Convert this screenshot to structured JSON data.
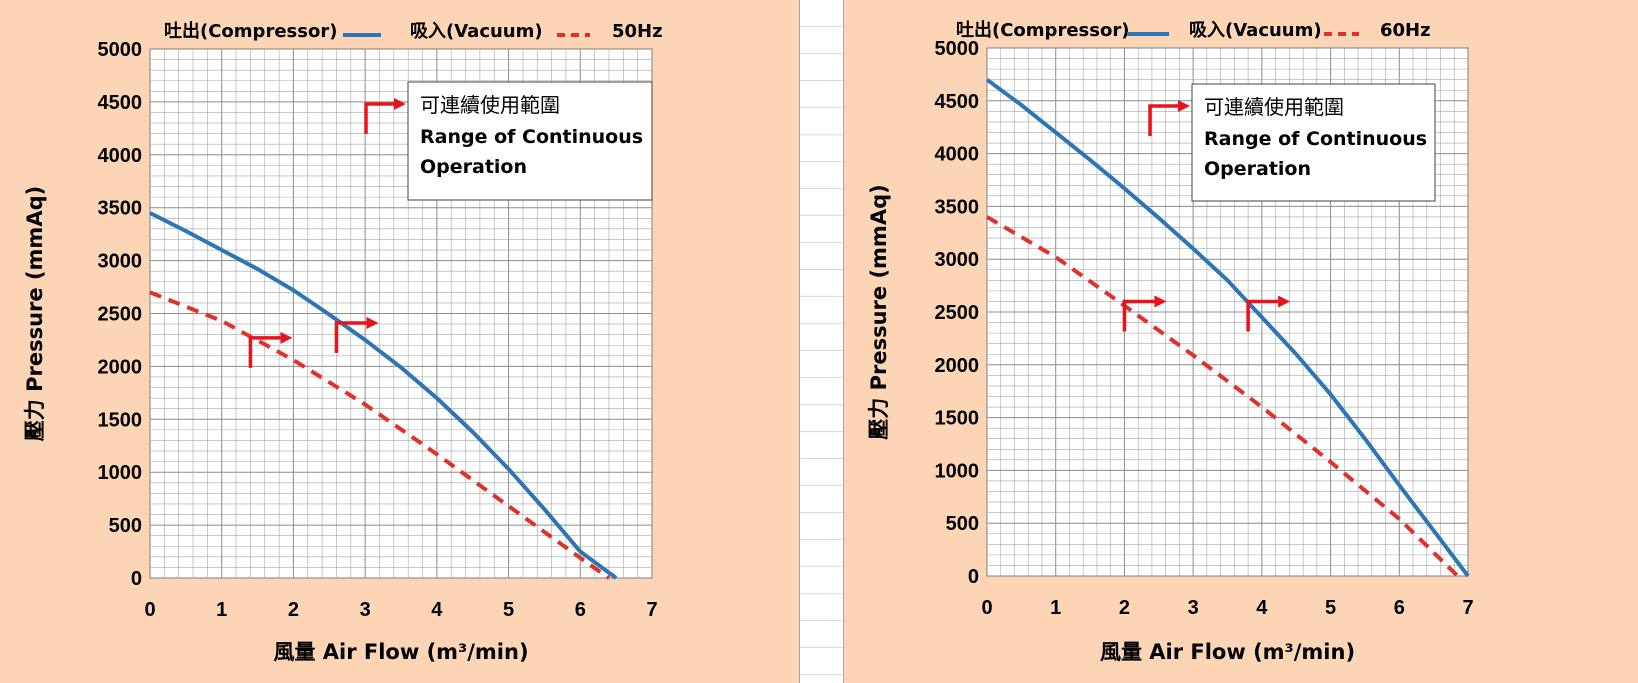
{
  "legend": {
    "compressor_label": "吐出(Compressor)",
    "vacuum_label": "吸入(Vacuum)"
  },
  "colors": {
    "compressor": "#2e75b6",
    "vacuum": "#e0312b",
    "marker": "#e8141b",
    "panel_background": "#fbd5b5"
  },
  "annotation": {
    "line1": "可連續使用範圍",
    "line2": "Range of Continuous",
    "line3": "Operation"
  },
  "chart_data": [
    {
      "type": "line",
      "frequency_label": "50Hz",
      "xlabel": "風量 Air Flow (m³/min)",
      "ylabel": "壓力 Pressure (mmAq)",
      "xlim": [
        0,
        7
      ],
      "ylim": [
        0,
        5000
      ],
      "x_ticks": [
        "0",
        "1",
        "2",
        "3",
        "4",
        "5",
        "6",
        "7"
      ],
      "y_ticks": [
        "0",
        "500",
        "1000",
        "1500",
        "2000",
        "2500",
        "3000",
        "3500",
        "4000",
        "4500",
        "5000"
      ],
      "grid": true,
      "legend_position": "top",
      "series": [
        {
          "name": "吐出(Compressor)",
          "style": "solid",
          "x": [
            0,
            0.5,
            1,
            1.5,
            2,
            2.5,
            3,
            3.5,
            4,
            4.5,
            5,
            5.5,
            6,
            6.5
          ],
          "y": [
            3450,
            3280,
            3100,
            2920,
            2720,
            2490,
            2250,
            1990,
            1700,
            1380,
            1030,
            650,
            250,
            0
          ]
        },
        {
          "name": "吸入(Vacuum)",
          "style": "dashed",
          "x": [
            0,
            1,
            2,
            3,
            4,
            5,
            6,
            6.4
          ],
          "y": [
            2700,
            2430,
            2060,
            1640,
            1170,
            680,
            190,
            0
          ]
        }
      ],
      "continuous_operation_markers": [
        {
          "x": 1.4,
          "y": 2270
        },
        {
          "x": 2.6,
          "y": 2410
        }
      ]
    },
    {
      "type": "line",
      "frequency_label": "60Hz",
      "xlabel": "風量 Air Flow (m³/min)",
      "ylabel": "壓力 Pressure (mmAq)",
      "xlim": [
        0,
        7
      ],
      "ylim": [
        0,
        5000
      ],
      "x_ticks": [
        "0",
        "1",
        "2",
        "3",
        "4",
        "5",
        "6",
        "7"
      ],
      "y_ticks": [
        "0",
        "500",
        "1000",
        "1500",
        "2000",
        "2500",
        "3000",
        "3500",
        "4000",
        "4500",
        "5000"
      ],
      "grid": true,
      "legend_position": "top",
      "series": [
        {
          "name": "吐出(Compressor)",
          "style": "solid",
          "x": [
            0,
            0.5,
            1,
            1.5,
            2,
            2.5,
            3,
            3.5,
            4,
            4.5,
            5,
            5.5,
            6,
            6.5,
            7
          ],
          "y": [
            4700,
            4460,
            4200,
            3940,
            3670,
            3390,
            3100,
            2800,
            2450,
            2100,
            1720,
            1300,
            860,
            430,
            0
          ]
        },
        {
          "name": "吸入(Vacuum)",
          "style": "dashed",
          "x": [
            0,
            1,
            2,
            3,
            4,
            5,
            6,
            6.85
          ],
          "y": [
            3400,
            3020,
            2560,
            2090,
            1600,
            1080,
            540,
            0
          ]
        }
      ],
      "continuous_operation_markers": [
        {
          "x": 2.0,
          "y": 2600
        },
        {
          "x": 3.8,
          "y": 2600
        }
      ]
    }
  ]
}
